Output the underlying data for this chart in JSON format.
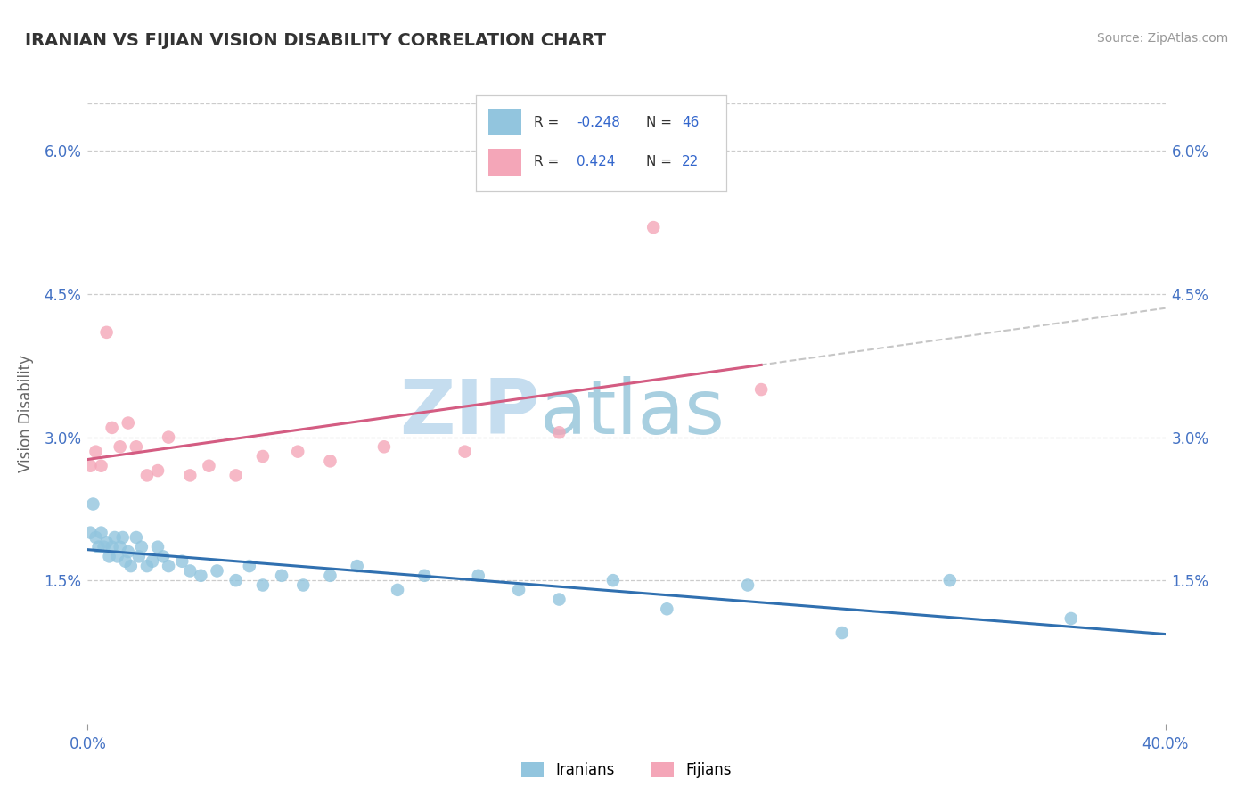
{
  "title": "IRANIAN VS FIJIAN VISION DISABILITY CORRELATION CHART",
  "source": "Source: ZipAtlas.com",
  "ylabel": "Vision Disability",
  "xlim": [
    0.0,
    0.4
  ],
  "ylim": [
    0.0,
    0.065
  ],
  "yticks": [
    0.015,
    0.03,
    0.045,
    0.06
  ],
  "ytick_labels": [
    "1.5%",
    "3.0%",
    "4.5%",
    "6.0%"
  ],
  "iranian_R": -0.248,
  "iranian_N": 46,
  "fijian_R": 0.424,
  "fijian_N": 22,
  "iranian_color": "#92c5de",
  "fijian_color": "#f4a6b8",
  "iranian_line_color": "#3070b0",
  "fijian_line_color": "#d45c82",
  "dashed_line_color": "#c0c0c0",
  "background_color": "#ffffff",
  "grid_color": "#cccccc",
  "iranian_x": [
    0.001,
    0.002,
    0.003,
    0.004,
    0.005,
    0.006,
    0.007,
    0.008,
    0.009,
    0.01,
    0.011,
    0.012,
    0.013,
    0.014,
    0.015,
    0.016,
    0.018,
    0.019,
    0.02,
    0.022,
    0.024,
    0.026,
    0.028,
    0.03,
    0.035,
    0.038,
    0.042,
    0.048,
    0.055,
    0.06,
    0.065,
    0.072,
    0.08,
    0.09,
    0.1,
    0.115,
    0.125,
    0.145,
    0.16,
    0.175,
    0.195,
    0.215,
    0.245,
    0.28,
    0.32,
    0.365
  ],
  "iranian_y": [
    0.02,
    0.023,
    0.0195,
    0.0185,
    0.02,
    0.0185,
    0.019,
    0.0175,
    0.0185,
    0.0195,
    0.0175,
    0.0185,
    0.0195,
    0.017,
    0.018,
    0.0165,
    0.0195,
    0.0175,
    0.0185,
    0.0165,
    0.017,
    0.0185,
    0.0175,
    0.0165,
    0.017,
    0.016,
    0.0155,
    0.016,
    0.015,
    0.0165,
    0.0145,
    0.0155,
    0.0145,
    0.0155,
    0.0165,
    0.014,
    0.0155,
    0.0155,
    0.014,
    0.013,
    0.015,
    0.012,
    0.0145,
    0.0095,
    0.015,
    0.011
  ],
  "fijian_x": [
    0.001,
    0.003,
    0.005,
    0.007,
    0.009,
    0.012,
    0.015,
    0.018,
    0.022,
    0.026,
    0.03,
    0.038,
    0.045,
    0.055,
    0.065,
    0.078,
    0.09,
    0.11,
    0.14,
    0.175,
    0.21,
    0.25
  ],
  "fijian_y": [
    0.027,
    0.0285,
    0.027,
    0.041,
    0.031,
    0.029,
    0.0315,
    0.029,
    0.026,
    0.0265,
    0.03,
    0.026,
    0.027,
    0.026,
    0.028,
    0.0285,
    0.0275,
    0.029,
    0.0285,
    0.0305,
    0.052,
    0.035
  ],
  "watermark_zip": "ZIP",
  "watermark_atlas": "atlas",
  "watermark_color_zip": "#b8d8ee",
  "watermark_color_atlas": "#9ec8e0"
}
